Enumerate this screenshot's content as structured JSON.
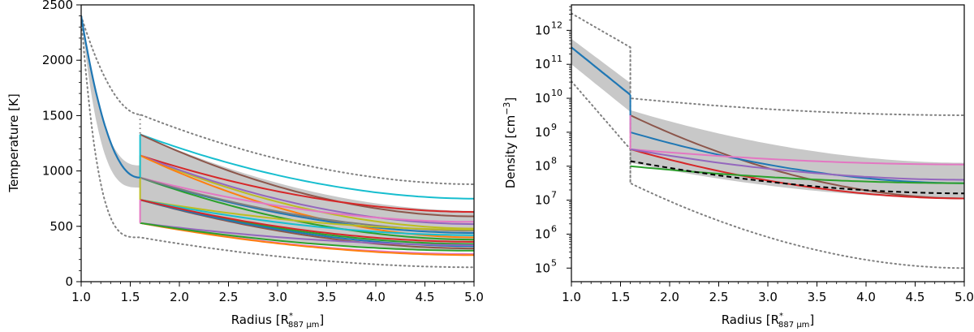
{
  "chart_data": [
    {
      "type": "line",
      "xlabel": "Radius [R",
      "xlabel_sup": "*",
      "xlabel_sub": "887 μm",
      "xlabel_end": "]",
      "ylabel": "Temperature [K]",
      "xlim": [
        1.0,
        5.0
      ],
      "ylim": [
        0,
        2500
      ],
      "xticks": [
        "1.0",
        "1.5",
        "2.0",
        "2.5",
        "3.0",
        "3.5",
        "4.0",
        "4.5",
        "5.0"
      ],
      "yticks": [
        "0",
        "500",
        "1000",
        "1500",
        "2000",
        "2500"
      ],
      "band": {
        "color": "#c8c8c8",
        "inner": {
          "x": [
            1.0,
            1.6
          ],
          "T0": 2400,
          "Tlow": 850,
          "Thigh": 1050
        },
        "outer": {
          "x": [
            1.6,
            5.0
          ],
          "low_start": 530,
          "low_end": 280,
          "high_start": 1330,
          "high_end": 640
        }
      },
      "bounds": {
        "color": "#808080",
        "style": "dotted",
        "upper": {
          "x": [
            1.0,
            1.6,
            5.0
          ],
          "y": [
            2400,
            1510,
            880
          ]
        },
        "lower": {
          "x": [
            1.0,
            1.6,
            5.0
          ],
          "y": [
            2400,
            400,
            130
          ]
        }
      },
      "main_series": {
        "color": "#1f77b4",
        "x": [
          1.0,
          1.6
        ],
        "y": [
          2400,
          940
        ]
      },
      "series": [
        {
          "color": "#17becf",
          "start": 1330,
          "end": 750
        },
        {
          "color": "#8c564b",
          "start": 1330,
          "end": 590
        },
        {
          "color": "#bcbd22",
          "start": 1140,
          "end": 480
        },
        {
          "color": "#d62728",
          "start": 1140,
          "end": 630
        },
        {
          "color": "#9467bd",
          "start": 1140,
          "end": 520
        },
        {
          "color": "#ff7f0e",
          "start": 1140,
          "end": 400
        },
        {
          "color": "#2ca02c",
          "start": 940,
          "end": 380
        },
        {
          "color": "#1f77b4",
          "start": 940,
          "end": 440
        },
        {
          "color": "#e377c2",
          "start": 940,
          "end": 540
        },
        {
          "color": "#7f7f7f",
          "start": 940,
          "end": 460
        },
        {
          "color": "#bcbd22",
          "start": 740,
          "end": 470
        },
        {
          "color": "#17becf",
          "start": 740,
          "end": 420
        },
        {
          "color": "#8c564b",
          "start": 740,
          "end": 300
        },
        {
          "color": "#2ca02c",
          "start": 740,
          "end": 340
        },
        {
          "color": "#1f77b4",
          "start": 740,
          "end": 320
        },
        {
          "color": "#d62728",
          "start": 740,
          "end": 360
        },
        {
          "color": "#9467bd",
          "start": 530,
          "end": 330
        },
        {
          "color": "#e377c2",
          "start": 530,
          "end": 250
        },
        {
          "color": "#ff7f0e",
          "start": 530,
          "end": 240
        },
        {
          "color": "#2ca02c",
          "start": 530,
          "end": 280
        }
      ],
      "jumps": [
        {
          "color": "#e377c2",
          "x": 1.6,
          "y": [
            530,
            740
          ]
        },
        {
          "color": "#bcbd22",
          "x": 1.6,
          "y": [
            740,
            1140
          ]
        },
        {
          "color": "#17becf",
          "x": 1.6,
          "y": [
            940,
            1330
          ]
        }
      ]
    },
    {
      "type": "line",
      "scale": "log",
      "xlabel": "Radius [R",
      "xlabel_sup": "*",
      "xlabel_sub": "887 μm",
      "xlabel_end": "]",
      "ylabel": "Density [cm",
      "ylabel_sup": "−3",
      "ylabel_end": "]",
      "xlim": [
        1.0,
        5.0
      ],
      "ylim_log10": [
        4.6,
        12.75
      ],
      "xticks": [
        "1.0",
        "1.5",
        "2.0",
        "2.5",
        "3.0",
        "3.5",
        "4.0",
        "4.5",
        "5.0"
      ],
      "ytick_base": "10",
      "ytick_exponents": [
        "5",
        "6",
        "7",
        "8",
        "9",
        "10",
        "11",
        "12"
      ],
      "band": {
        "color": "#c8c8c8",
        "inner": {
          "x": [
            1.0,
            1.6
          ],
          "low_start": 11.0,
          "low_end": 9.6,
          "high_start": 11.75,
          "high_end": 10.45
        },
        "outer": {
          "x": [
            1.6,
            5.0
          ],
          "low_start": 8.1,
          "low_end": 7.05,
          "high_start": 9.65,
          "high_end": 8.1
        }
      },
      "bounds": {
        "color": "#808080",
        "style": "dotted",
        "upper": {
          "x": [
            1.0,
            1.6,
            1.6,
            5.0
          ],
          "y": [
            12.5,
            11.5,
            10.0,
            9.5
          ]
        },
        "lower": {
          "x": [
            1.0,
            1.6,
            1.6,
            5.0
          ],
          "y": [
            10.5,
            8.5,
            7.5,
            5.0
          ]
        }
      },
      "main_series": {
        "color": "#1f77b4",
        "x": [
          1.0,
          1.6
        ],
        "y": [
          11.5,
          10.1
        ]
      },
      "series": [
        {
          "color": "#8c564b",
          "start": 9.5,
          "end": 7.05
        },
        {
          "color": "#1f77b4",
          "start": 9.0,
          "end": 7.5
        },
        {
          "color": "#d62728",
          "start": 8.5,
          "end": 7.05
        },
        {
          "color": "#e377c2",
          "start": 8.5,
          "end": 8.05
        },
        {
          "color": "#9467bd",
          "start": 8.5,
          "end": 7.6
        },
        {
          "color": "#2ca02c",
          "start": 8.0,
          "end": 7.5
        },
        {
          "color": "#000000",
          "start": 8.15,
          "end": 7.2,
          "dashed": true
        }
      ],
      "jumps": [
        {
          "color": "#1f77b4",
          "x": 1.6,
          "y": [
            9.0,
            10.1
          ]
        },
        {
          "color": "#e377c2",
          "x": 1.6,
          "y": [
            8.5,
            9.5
          ]
        }
      ]
    }
  ]
}
